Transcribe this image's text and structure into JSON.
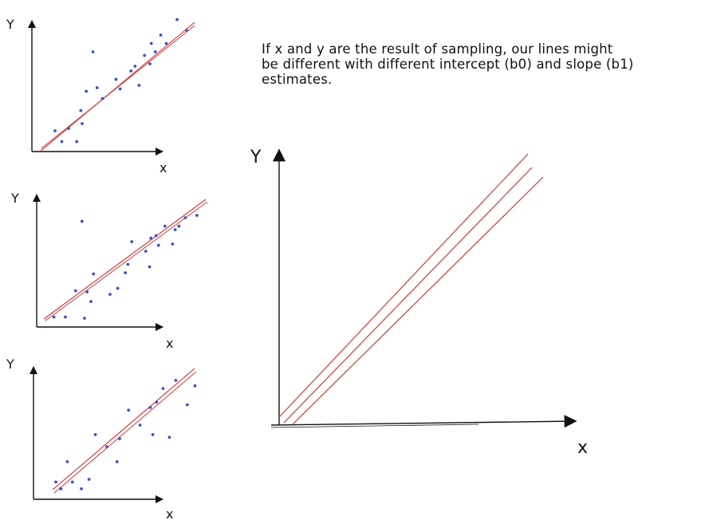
{
  "note": {
    "lines": [
      "If x and y are the result of sampling, our lines might",
      "be different with different intercept (b0) and slope (b1)",
      "estimates."
    ]
  },
  "colors": {
    "points": "#3b4fd0",
    "lines": "#d32a2a",
    "axes": "#111111"
  },
  "panels": [
    {
      "id": "sample-1",
      "xlabel": "x",
      "ylabel": "Y",
      "points": [
        [
          1,
          1.2
        ],
        [
          1.5,
          0.3
        ],
        [
          2,
          1.4
        ],
        [
          2.6,
          0.3
        ],
        [
          2.9,
          2.9
        ],
        [
          3,
          1.8
        ],
        [
          3.3,
          4.5
        ],
        [
          3.8,
          7.8
        ],
        [
          4.1,
          4.8
        ],
        [
          4.5,
          3.9
        ],
        [
          5.5,
          5.5
        ],
        [
          5.8,
          4.7
        ],
        [
          6.6,
          6.2
        ],
        [
          6.9,
          6.6
        ],
        [
          7.2,
          5.0
        ],
        [
          7.6,
          7.5
        ],
        [
          8,
          6.8
        ],
        [
          8.1,
          8.5
        ],
        [
          8.4,
          7.8
        ],
        [
          8.8,
          9.2
        ],
        [
          9.2,
          8.5
        ],
        [
          10,
          10.5
        ],
        [
          10.7,
          9.6
        ]
      ]
    },
    {
      "id": "sample-2",
      "xlabel": "x",
      "ylabel": "Y",
      "points": [
        [
          0.6,
          0.3
        ],
        [
          1.5,
          0.3
        ],
        [
          2.3,
          2.5
        ],
        [
          2.8,
          8.3
        ],
        [
          3,
          0.2
        ],
        [
          3.2,
          2.4
        ],
        [
          3.5,
          1.6
        ],
        [
          3.7,
          3.9
        ],
        [
          5,
          2.2
        ],
        [
          5.6,
          2.7
        ],
        [
          6.2,
          4.0
        ],
        [
          6.4,
          4.7
        ],
        [
          6.7,
          6.6
        ],
        [
          7.8,
          5.8
        ],
        [
          8.1,
          4.5
        ],
        [
          8.2,
          6.9
        ],
        [
          8.6,
          7.1
        ],
        [
          8.8,
          6.3
        ],
        [
          9.3,
          7.9
        ],
        [
          9.9,
          6.4
        ],
        [
          10.1,
          7.6
        ],
        [
          10.4,
          7.9
        ],
        [
          10.9,
          8.6
        ],
        [
          11.8,
          8.8
        ]
      ]
    },
    {
      "id": "sample-3",
      "xlabel": "x",
      "ylabel": "Y",
      "points": [
        [
          1,
          0.8
        ],
        [
          1.4,
          0.3
        ],
        [
          1.9,
          2.3
        ],
        [
          2.3,
          0.8
        ],
        [
          3,
          0.3
        ],
        [
          3.6,
          1.0
        ],
        [
          4.1,
          4.3
        ],
        [
          5,
          3.4
        ],
        [
          5.8,
          2.3
        ],
        [
          6,
          4.0
        ],
        [
          6.7,
          6.1
        ],
        [
          7.6,
          5.0
        ],
        [
          8.4,
          6.3
        ],
        [
          8.6,
          4.3
        ],
        [
          8.9,
          6.7
        ],
        [
          9.4,
          7.7
        ],
        [
          9.9,
          4.1
        ],
        [
          10.4,
          8.3
        ],
        [
          11.3,
          6.5
        ],
        [
          11.9,
          7.9
        ]
      ]
    }
  ],
  "combined": {
    "xlabel": "x",
    "ylabel": "Y"
  }
}
